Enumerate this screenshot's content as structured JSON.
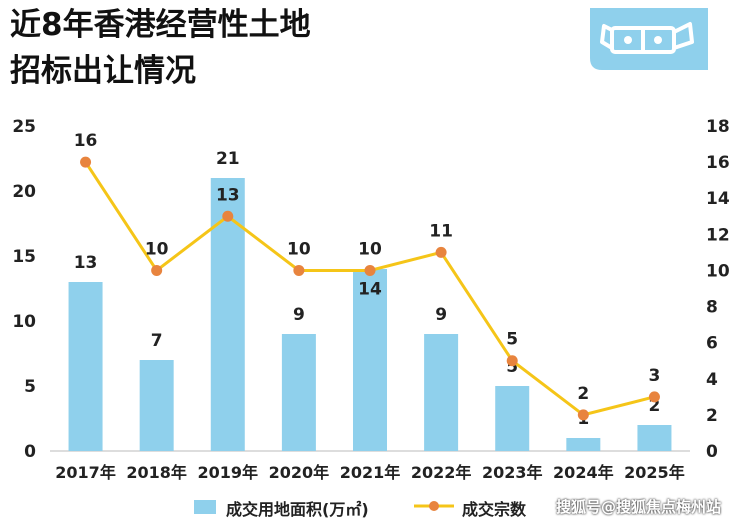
{
  "title_lines": [
    "近8年香港经营性土地",
    "招标出让情况"
  ],
  "watermark_bottom": "搜狐号@搜狐焦点梅州站",
  "colors": {
    "bar": "#8fd0ec",
    "line": "#f5c518",
    "point": "#e8843e"
  },
  "chart_data": {
    "type": "bar",
    "categories": [
      "2017年",
      "2018年",
      "2019年",
      "2020年",
      "2021年",
      "2022年",
      "2023年",
      "2024年",
      "2025年"
    ],
    "series": [
      {
        "name": "成交用地面积(万㎡)",
        "type": "bar",
        "axis": "left",
        "values": [
          13,
          7,
          21,
          9,
          14,
          9,
          5,
          1,
          2
        ]
      },
      {
        "name": "成交宗数",
        "type": "line",
        "axis": "right",
        "values": [
          16,
          10,
          13,
          10,
          10,
          11,
          5,
          2,
          3
        ]
      }
    ],
    "y_left": {
      "min": 0,
      "max": 25,
      "ticks": [
        "0",
        "5",
        "10",
        "15",
        "20",
        "25"
      ]
    },
    "y_right": {
      "min": 0,
      "max": 18,
      "ticks": [
        "0",
        "2",
        "4",
        "6",
        "8",
        "10",
        "12",
        "14",
        "16",
        "18"
      ]
    },
    "legend_position": "bottom",
    "grid": false
  }
}
